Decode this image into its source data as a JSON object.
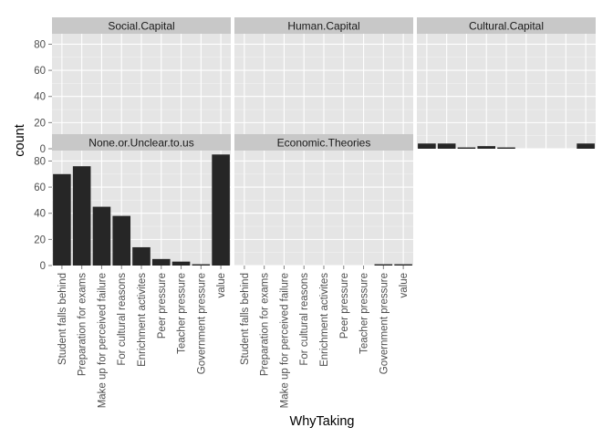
{
  "chart_data": {
    "type": "bar",
    "layout": "facet-wrap",
    "xlabel": "WhyTaking",
    "ylabel": "count",
    "ylim": [
      0,
      88
    ],
    "yticks": [
      0,
      20,
      40,
      60,
      80
    ],
    "grid": true,
    "categories": [
      "Student falls behind",
      "Preparation for exams",
      "Make up for perceived failure",
      "For cultural reasons",
      "Enrichment activites",
      "Peer pressure",
      "Teacher pressure",
      "Government pressure",
      "value"
    ],
    "facets": [
      {
        "name": "Social.Capital",
        "values": [
          2,
          2,
          2,
          1,
          0,
          0,
          0,
          0,
          3
        ]
      },
      {
        "name": "Human.Capital",
        "values": [
          2,
          2,
          2,
          1,
          0,
          0,
          0,
          0,
          2
        ]
      },
      {
        "name": "Cultural.Capital",
        "values": [
          4,
          4,
          1,
          2,
          1,
          0,
          0,
          0,
          4
        ]
      },
      {
        "name": "None.or.Unclear.to.us",
        "values": [
          70,
          76,
          45,
          38,
          14,
          5,
          3,
          1,
          85
        ]
      },
      {
        "name": "Economic.Theories",
        "values": [
          0,
          0,
          0,
          0,
          0,
          0,
          0,
          1,
          1
        ]
      }
    ]
  }
}
